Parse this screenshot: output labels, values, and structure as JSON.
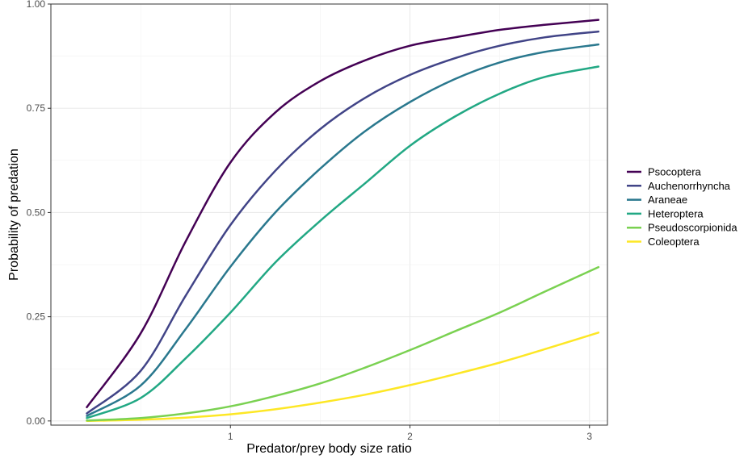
{
  "chart_data": {
    "type": "line",
    "xlabel": "Predator/prey body size ratio",
    "ylabel": "Probability of predation",
    "xlim": [
      0.0,
      3.1
    ],
    "ylim": [
      -0.01,
      1.0
    ],
    "xticks": [
      1,
      2,
      3
    ],
    "yticks": [
      0.0,
      0.25,
      0.5,
      0.75,
      1.0
    ],
    "ytick_labels": [
      "0.00",
      "0.25",
      "0.50",
      "0.75",
      "1.00"
    ],
    "grid": true,
    "legend_position": "right",
    "x": [
      0.2,
      0.5,
      0.75,
      1.0,
      1.25,
      1.5,
      1.75,
      2.0,
      2.25,
      2.5,
      2.75,
      3.05
    ],
    "series": [
      {
        "name": "Psocoptera",
        "color": "#440154",
        "values": [
          0.033,
          0.21,
          0.43,
          0.62,
          0.74,
          0.815,
          0.865,
          0.9,
          0.92,
          0.938,
          0.95,
          0.962
        ]
      },
      {
        "name": "Auchenorrhyncha",
        "color": "#414487",
        "values": [
          0.018,
          0.12,
          0.3,
          0.47,
          0.6,
          0.7,
          0.775,
          0.83,
          0.87,
          0.9,
          0.92,
          0.934
        ]
      },
      {
        "name": "Araneae",
        "color": "#2a788e",
        "values": [
          0.012,
          0.085,
          0.22,
          0.37,
          0.5,
          0.605,
          0.695,
          0.765,
          0.82,
          0.86,
          0.885,
          0.903
        ]
      },
      {
        "name": "Heteroptera",
        "color": "#22a884",
        "values": [
          0.007,
          0.055,
          0.15,
          0.26,
          0.38,
          0.48,
          0.57,
          0.66,
          0.73,
          0.785,
          0.825,
          0.85
        ]
      },
      {
        "name": "Pseudoscorpionida",
        "color": "#7ad151",
        "values": [
          0.001,
          0.007,
          0.018,
          0.035,
          0.06,
          0.09,
          0.128,
          0.17,
          0.215,
          0.26,
          0.31,
          0.369
        ]
      },
      {
        "name": "Coleoptera",
        "color": "#fde725",
        "values": [
          0.0,
          0.003,
          0.008,
          0.016,
          0.028,
          0.044,
          0.063,
          0.086,
          0.112,
          0.14,
          0.172,
          0.212
        ]
      }
    ]
  }
}
